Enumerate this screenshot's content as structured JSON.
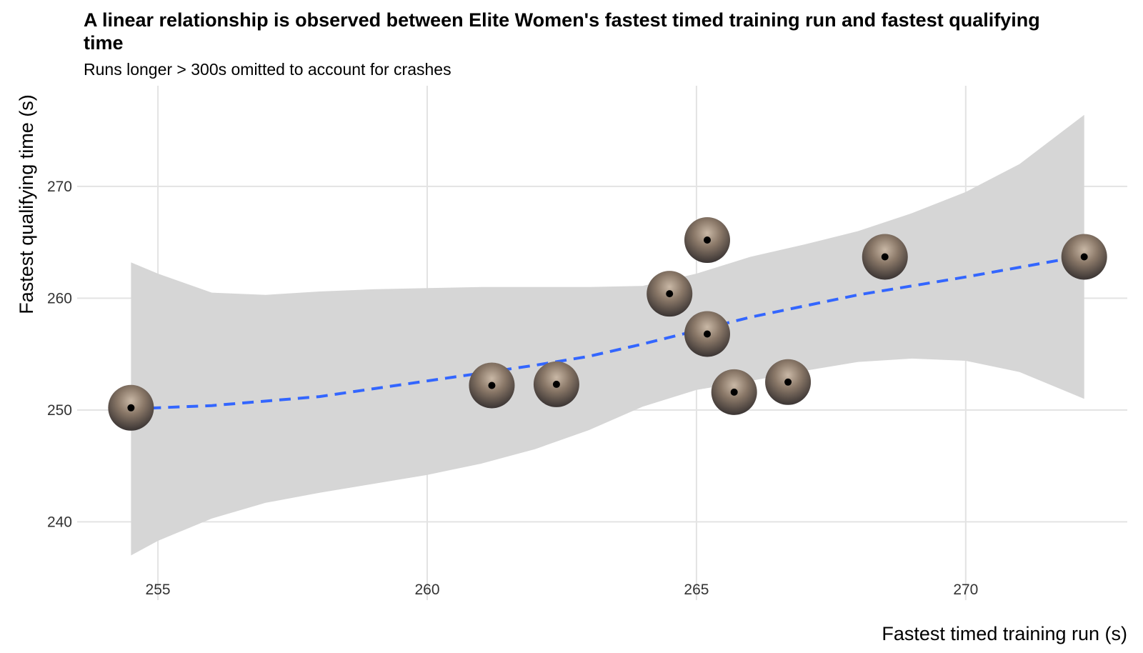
{
  "chart_data": {
    "type": "scatter",
    "title": "A linear relationship is observed between Elite Women's fastest timed training run and fastest qualifying time",
    "subtitle": "Runs longer > 300s omitted to account for crashes",
    "xlabel": "Fastest timed training run (s)",
    "ylabel": "Fastest qualifying time (s)",
    "xlim": [
      253.5,
      273.0
    ],
    "ylim": [
      233.0,
      279.0
    ],
    "x_ticks": [
      255,
      260,
      265,
      270
    ],
    "y_ticks": [
      240,
      250,
      260,
      270
    ],
    "grid": true,
    "points": [
      {
        "x": 254.5,
        "y": 250.2
      },
      {
        "x": 261.2,
        "y": 252.2
      },
      {
        "x": 262.4,
        "y": 252.3
      },
      {
        "x": 264.5,
        "y": 260.4
      },
      {
        "x": 265.2,
        "y": 265.2
      },
      {
        "x": 265.2,
        "y": 256.8
      },
      {
        "x": 265.7,
        "y": 251.6
      },
      {
        "x": 266.7,
        "y": 252.5
      },
      {
        "x": 268.5,
        "y": 263.7
      },
      {
        "x": 272.2,
        "y": 263.7
      }
    ],
    "trend_line": {
      "style": "dashed",
      "color": "#3366ff",
      "x": [
        254.5,
        256,
        258,
        260,
        262,
        263,
        264,
        265,
        266,
        268,
        270,
        272.2
      ],
      "y": [
        250.1,
        250.4,
        251.2,
        252.6,
        254.0,
        254.8,
        255.9,
        257.1,
        258.3,
        260.3,
        261.9,
        263.8
      ]
    },
    "confidence_band": {
      "color": "#d6d6d6",
      "x": [
        254.5,
        255,
        256,
        257,
        258,
        259,
        260,
        261,
        262,
        263,
        264,
        265,
        266,
        267,
        268,
        269,
        270,
        271,
        272.2
      ],
      "lower": [
        237.0,
        238.3,
        240.3,
        241.7,
        242.6,
        243.4,
        244.2,
        245.2,
        246.5,
        248.2,
        250.3,
        251.8,
        252.6,
        253.5,
        254.3,
        254.6,
        254.4,
        253.4,
        251.0
      ],
      "upper": [
        263.2,
        262.2,
        260.5,
        260.3,
        260.6,
        260.8,
        260.9,
        261.0,
        261.0,
        261.0,
        261.1,
        262.2,
        263.7,
        264.8,
        266.0,
        267.6,
        269.5,
        272.0,
        276.4
      ]
    }
  }
}
